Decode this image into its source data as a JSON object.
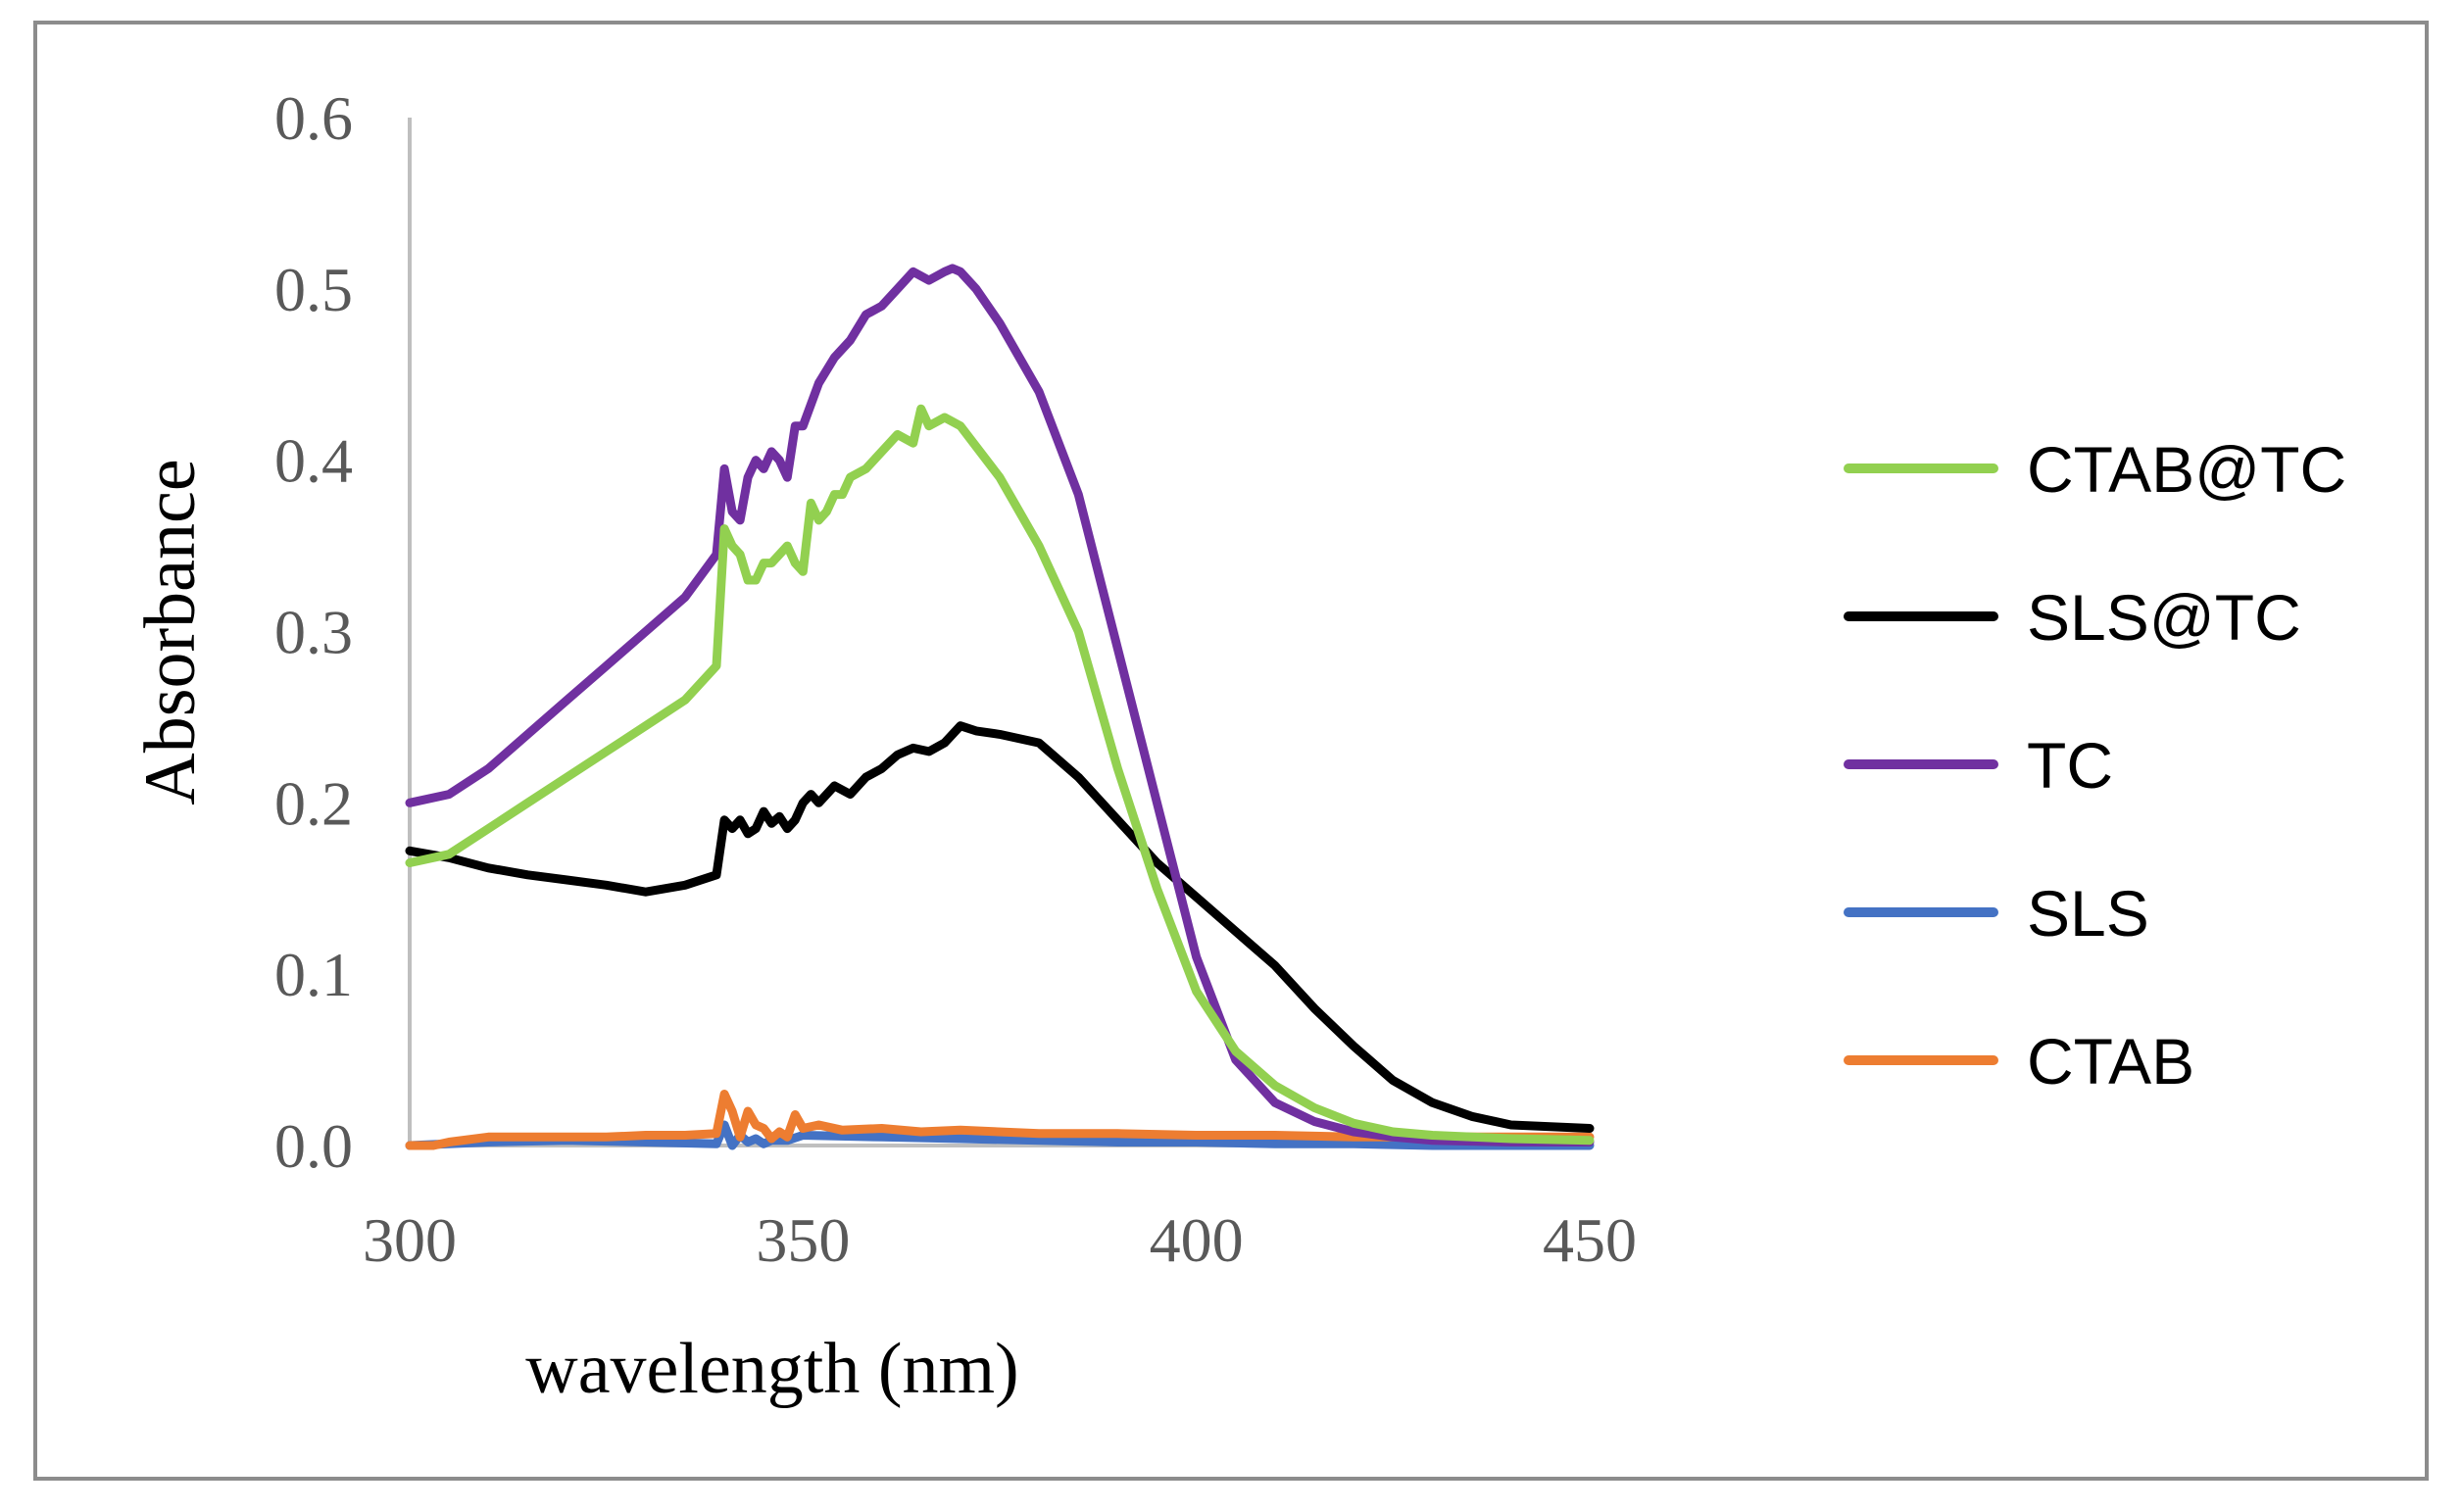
{
  "chart_data": {
    "type": "line",
    "title": "",
    "xlabel": "wavelength (nm)",
    "ylabel": "Absorbance",
    "xlim": [
      300,
      450
    ],
    "ylim": [
      0,
      0.6
    ],
    "xticks": [
      300,
      350,
      400,
      450
    ],
    "yticks": [
      0.0,
      0.1,
      0.2,
      0.3,
      0.4,
      0.5,
      0.6
    ],
    "ytick_labels": [
      "0.0",
      "0.1",
      "0.2",
      "0.3",
      "0.4",
      "0.5",
      "0.6"
    ],
    "grid": false,
    "legend_position": "right",
    "series": [
      {
        "name": "CTAB@TC",
        "color": "#92d050",
        "x": [
          300,
          305,
          310,
          315,
          320,
          325,
          330,
          335,
          339,
          340,
          341,
          342,
          343,
          344,
          345,
          346,
          347,
          348,
          349,
          350,
          351,
          352,
          353,
          354,
          355,
          356,
          358,
          360,
          362,
          364,
          365,
          366,
          368,
          370,
          375,
          380,
          385,
          390,
          395,
          400,
          405,
          410,
          415,
          420,
          425,
          430,
          440,
          450
        ],
        "y": [
          0.165,
          0.17,
          0.185,
          0.2,
          0.215,
          0.23,
          0.245,
          0.26,
          0.28,
          0.36,
          0.35,
          0.345,
          0.33,
          0.33,
          0.34,
          0.34,
          0.345,
          0.35,
          0.34,
          0.335,
          0.375,
          0.365,
          0.37,
          0.38,
          0.38,
          0.39,
          0.395,
          0.405,
          0.415,
          0.41,
          0.43,
          0.42,
          0.425,
          0.42,
          0.39,
          0.35,
          0.3,
          0.22,
          0.15,
          0.09,
          0.055,
          0.035,
          0.022,
          0.013,
          0.008,
          0.006,
          0.004,
          0.003
        ]
      },
      {
        "name": "SLS@TC",
        "color": "#000000",
        "x": [
          300,
          305,
          310,
          315,
          320,
          325,
          330,
          335,
          339,
          340,
          341,
          342,
          343,
          344,
          345,
          346,
          347,
          348,
          349,
          350,
          351,
          352,
          354,
          356,
          358,
          360,
          362,
          364,
          366,
          368,
          370,
          372,
          375,
          380,
          385,
          390,
          395,
          400,
          405,
          410,
          415,
          420,
          425,
          430,
          435,
          440,
          450
        ],
        "y": [
          0.172,
          0.168,
          0.162,
          0.158,
          0.155,
          0.152,
          0.148,
          0.152,
          0.158,
          0.19,
          0.185,
          0.19,
          0.182,
          0.185,
          0.195,
          0.188,
          0.192,
          0.185,
          0.19,
          0.2,
          0.205,
          0.2,
          0.21,
          0.205,
          0.215,
          0.22,
          0.228,
          0.232,
          0.23,
          0.235,
          0.245,
          0.242,
          0.24,
          0.235,
          0.215,
          0.19,
          0.165,
          0.145,
          0.125,
          0.105,
          0.08,
          0.058,
          0.038,
          0.025,
          0.017,
          0.012,
          0.01
        ]
      },
      {
        "name": "TC",
        "color": "#7030a0",
        "x": [
          300,
          305,
          310,
          315,
          320,
          325,
          330,
          335,
          339,
          340,
          341,
          342,
          343,
          344,
          345,
          346,
          347,
          348,
          349,
          350,
          352,
          354,
          356,
          358,
          360,
          362,
          364,
          366,
          368,
          369,
          370,
          372,
          375,
          380,
          385,
          390,
          395,
          400,
          405,
          410,
          415,
          420,
          425,
          430,
          440,
          450
        ],
        "y": [
          0.2,
          0.205,
          0.22,
          0.24,
          0.26,
          0.28,
          0.3,
          0.32,
          0.345,
          0.395,
          0.37,
          0.365,
          0.39,
          0.4,
          0.395,
          0.405,
          0.4,
          0.39,
          0.42,
          0.42,
          0.445,
          0.46,
          0.47,
          0.485,
          0.49,
          0.5,
          0.51,
          0.505,
          0.51,
          0.512,
          0.51,
          0.5,
          0.48,
          0.44,
          0.38,
          0.29,
          0.2,
          0.11,
          0.05,
          0.025,
          0.014,
          0.008,
          0.005,
          0.003,
          0.002,
          0.002
        ]
      },
      {
        "name": "SLS",
        "color": "#4472c4",
        "x": [
          300,
          310,
          320,
          330,
          339,
          340,
          341,
          342,
          343,
          344,
          345,
          346,
          348,
          350,
          360,
          370,
          380,
          390,
          400,
          410,
          420,
          430,
          440,
          450
        ],
        "y": [
          0.0,
          0.002,
          0.003,
          0.002,
          0.001,
          0.012,
          0.0,
          0.006,
          0.002,
          0.004,
          0.001,
          0.003,
          0.003,
          0.006,
          0.005,
          0.004,
          0.003,
          0.002,
          0.002,
          0.001,
          0.001,
          0.0,
          0.0,
          0.0
        ]
      },
      {
        "name": "CTAB",
        "color": "#ed7d31",
        "x": [
          300,
          303,
          305,
          310,
          315,
          320,
          325,
          330,
          335,
          339,
          340,
          341,
          342,
          343,
          344,
          345,
          346,
          347,
          348,
          349,
          350,
          352,
          355,
          360,
          365,
          370,
          380,
          390,
          400,
          410,
          420,
          430,
          440,
          450
        ],
        "y": [
          0.0,
          0.0,
          0.002,
          0.005,
          0.005,
          0.005,
          0.005,
          0.006,
          0.006,
          0.007,
          0.03,
          0.02,
          0.005,
          0.02,
          0.012,
          0.01,
          0.004,
          0.008,
          0.005,
          0.018,
          0.01,
          0.012,
          0.009,
          0.01,
          0.008,
          0.009,
          0.007,
          0.007,
          0.006,
          0.006,
          0.005,
          0.005,
          0.005,
          0.005
        ]
      }
    ]
  }
}
